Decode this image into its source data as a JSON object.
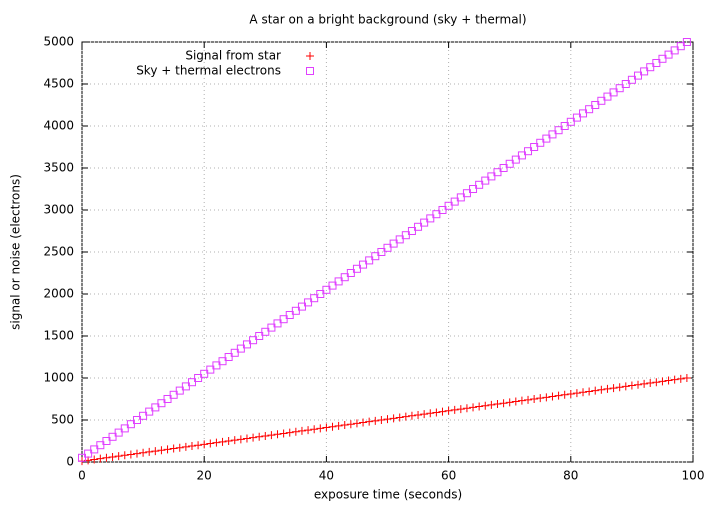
{
  "chart_data": {
    "type": "scatter",
    "title": "A star on a bright background (sky + thermal)",
    "x_label": "exposure time (seconds)",
    "y_label": "signal or noise (electrons)",
    "x": [
      0,
      1,
      2,
      3,
      4,
      5,
      6,
      7,
      8,
      9,
      10,
      11,
      12,
      13,
      14,
      15,
      16,
      17,
      18,
      19,
      20,
      21,
      22,
      23,
      24,
      25,
      26,
      27,
      28,
      29,
      30,
      31,
      32,
      33,
      34,
      35,
      36,
      37,
      38,
      39,
      40,
      41,
      42,
      43,
      44,
      45,
      46,
      47,
      48,
      49,
      50,
      51,
      52,
      53,
      54,
      55,
      56,
      57,
      58,
      59,
      60,
      61,
      62,
      63,
      64,
      65,
      66,
      67,
      68,
      69,
      70,
      71,
      72,
      73,
      74,
      75,
      76,
      77,
      78,
      79,
      80,
      81,
      82,
      83,
      84,
      85,
      86,
      87,
      88,
      89,
      90,
      91,
      92,
      93,
      94,
      95,
      96,
      97,
      98,
      99
    ],
    "series": [
      {
        "name": "Signal from star",
        "color": "#ff0000",
        "marker": "plus",
        "values": [
          10,
          20,
          30,
          40,
          50,
          60,
          70,
          80,
          90,
          100,
          110,
          120,
          130,
          140,
          150,
          160,
          170,
          180,
          190,
          200,
          210,
          220,
          230,
          240,
          250,
          260,
          270,
          280,
          290,
          300,
          310,
          320,
          330,
          340,
          350,
          360,
          370,
          380,
          390,
          400,
          410,
          420,
          430,
          440,
          450,
          460,
          470,
          480,
          490,
          500,
          510,
          520,
          530,
          540,
          550,
          560,
          570,
          580,
          590,
          600,
          610,
          620,
          630,
          640,
          650,
          660,
          670,
          680,
          690,
          700,
          710,
          720,
          730,
          740,
          750,
          760,
          770,
          780,
          790,
          800,
          810,
          820,
          830,
          840,
          850,
          860,
          870,
          880,
          890,
          900,
          910,
          920,
          930,
          940,
          950,
          960,
          970,
          980,
          990,
          1000
        ]
      },
      {
        "name": "Sky + thermal electrons",
        "color": "#e040ff",
        "marker": "square",
        "values": [
          50,
          100,
          150,
          200,
          250,
          300,
          350,
          400,
          450,
          500,
          550,
          600,
          650,
          700,
          750,
          800,
          850,
          900,
          950,
          1000,
          1050,
          1100,
          1150,
          1200,
          1250,
          1300,
          1350,
          1400,
          1450,
          1500,
          1550,
          1600,
          1650,
          1700,
          1750,
          1800,
          1850,
          1900,
          1950,
          2000,
          2050,
          2100,
          2150,
          2200,
          2250,
          2300,
          2350,
          2400,
          2450,
          2500,
          2550,
          2600,
          2650,
          2700,
          2750,
          2800,
          2850,
          2900,
          2950,
          3000,
          3050,
          3100,
          3150,
          3200,
          3250,
          3300,
          3350,
          3400,
          3450,
          3500,
          3550,
          3600,
          3650,
          3700,
          3750,
          3800,
          3850,
          3900,
          3950,
          4000,
          4050,
          4100,
          4150,
          4200,
          4250,
          4300,
          4350,
          4400,
          4450,
          4500,
          4550,
          4600,
          4650,
          4700,
          4750,
          4800,
          4850,
          4900,
          4950,
          5000
        ]
      }
    ],
    "xlim": [
      0,
      100
    ],
    "xticks": [
      0,
      20,
      40,
      60,
      80,
      100
    ],
    "ylim": [
      0,
      5000
    ],
    "yticks": [
      0,
      500,
      1000,
      1500,
      2000,
      2500,
      3000,
      3500,
      4000,
      4500,
      5000
    ],
    "grid": true,
    "legend": "top-left"
  }
}
